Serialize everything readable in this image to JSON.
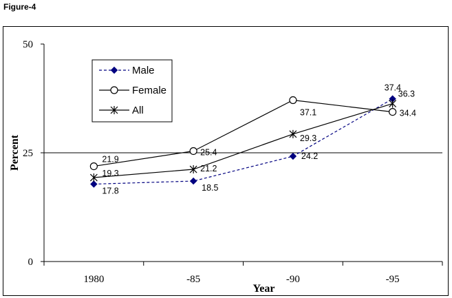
{
  "figure_label": "Figure-4",
  "chart_data": {
    "type": "line",
    "title": "",
    "xlabel": "Year",
    "ylabel": "Percent",
    "categories": [
      "1980",
      "-85",
      "-90",
      "-95"
    ],
    "ylim": [
      0,
      50
    ],
    "yticks": [
      "0",
      "25",
      "50"
    ],
    "grid": "horizontal line at 25 only",
    "legend_position": "top-left",
    "series": [
      {
        "name": "Male",
        "values": [
          17.8,
          18.5,
          24.2,
          37.4
        ],
        "labels": [
          "17.8",
          "18.5",
          "24.2",
          "37.4"
        ],
        "color": "#000080",
        "line": "dashed",
        "marker": "filled-diamond"
      },
      {
        "name": "Female",
        "values": [
          21.9,
          25.4,
          37.1,
          34.4
        ],
        "labels": [
          "21.9",
          "25.4",
          "37.1",
          "34.4"
        ],
        "color": "#000000",
        "line": "solid",
        "marker": "open-circle"
      },
      {
        "name": "All",
        "values": [
          19.3,
          21.2,
          29.3,
          36.3
        ],
        "labels": [
          "19.3",
          "21.2",
          "29.3",
          "36.3"
        ],
        "color": "#000000",
        "line": "solid",
        "marker": "star-x"
      }
    ]
  }
}
